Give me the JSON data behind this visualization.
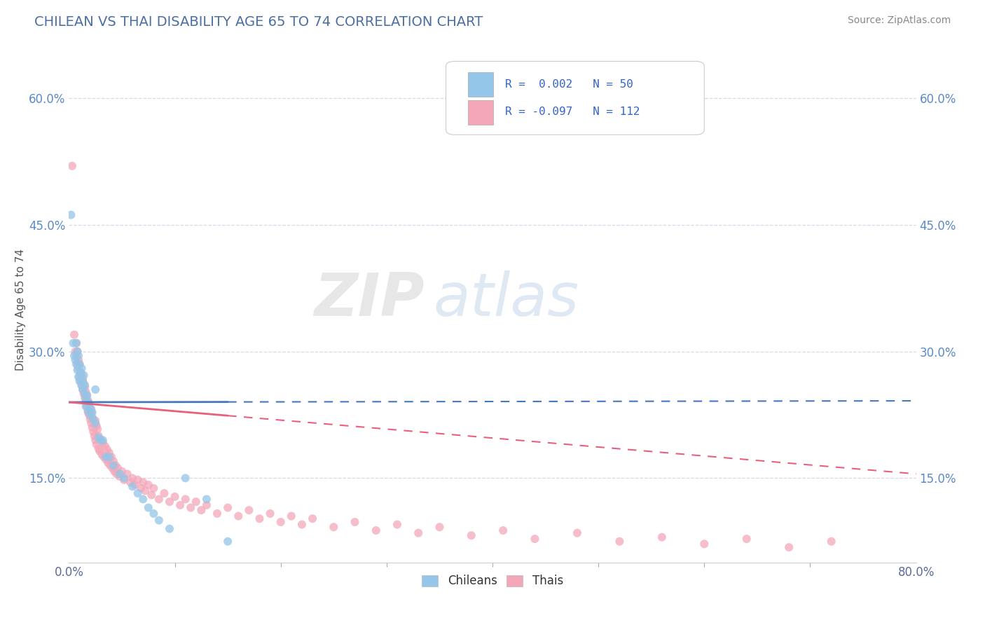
{
  "title": "CHILEAN VS THAI DISABILITY AGE 65 TO 74 CORRELATION CHART",
  "source_text": "Source: ZipAtlas.com",
  "ylabel": "Disability Age 65 to 74",
  "xlim": [
    0.0,
    0.8
  ],
  "ylim": [
    0.05,
    0.65
  ],
  "ytick_labels": [
    "15.0%",
    "30.0%",
    "45.0%",
    "60.0%"
  ],
  "ytick_vals": [
    0.15,
    0.3,
    0.45,
    0.6
  ],
  "color_chilean": "#93C6E8",
  "color_thai": "#F4A7B9",
  "line_color_chilean": "#4477BB",
  "line_color_thai": "#E8607A",
  "watermark_zip": "ZIP",
  "watermark_atlas": "atlas",
  "background_color": "#ffffff",
  "grid_color": "#d8d8e8",
  "chilean_x": [
    0.002,
    0.004,
    0.005,
    0.006,
    0.007,
    0.007,
    0.008,
    0.008,
    0.009,
    0.009,
    0.01,
    0.01,
    0.011,
    0.012,
    0.012,
    0.013,
    0.013,
    0.014,
    0.015,
    0.015,
    0.016,
    0.016,
    0.017,
    0.018,
    0.018,
    0.019,
    0.02,
    0.021,
    0.022,
    0.023,
    0.025,
    0.025,
    0.028,
    0.03,
    0.032,
    0.035,
    0.038,
    0.042,
    0.048,
    0.052,
    0.06,
    0.065,
    0.07,
    0.075,
    0.08,
    0.085,
    0.095,
    0.11,
    0.13,
    0.15
  ],
  "chilean_y": [
    0.462,
    0.31,
    0.295,
    0.29,
    0.285,
    0.31,
    0.278,
    0.3,
    0.27,
    0.295,
    0.265,
    0.285,
    0.275,
    0.26,
    0.28,
    0.265,
    0.255,
    0.272,
    0.26,
    0.25,
    0.245,
    0.235,
    0.248,
    0.24,
    0.23,
    0.238,
    0.225,
    0.232,
    0.228,
    0.22,
    0.255,
    0.215,
    0.198,
    0.195,
    0.195,
    0.175,
    0.175,
    0.165,
    0.155,
    0.15,
    0.14,
    0.132,
    0.125,
    0.115,
    0.108,
    0.1,
    0.09,
    0.15,
    0.125,
    0.075
  ],
  "thai_x": [
    0.003,
    0.005,
    0.006,
    0.007,
    0.007,
    0.008,
    0.008,
    0.009,
    0.009,
    0.01,
    0.01,
    0.011,
    0.011,
    0.012,
    0.012,
    0.013,
    0.013,
    0.014,
    0.014,
    0.015,
    0.015,
    0.016,
    0.016,
    0.017,
    0.017,
    0.018,
    0.018,
    0.019,
    0.019,
    0.02,
    0.02,
    0.021,
    0.021,
    0.022,
    0.022,
    0.023,
    0.024,
    0.025,
    0.025,
    0.026,
    0.026,
    0.027,
    0.028,
    0.028,
    0.029,
    0.03,
    0.031,
    0.032,
    0.033,
    0.034,
    0.035,
    0.036,
    0.037,
    0.038,
    0.039,
    0.04,
    0.041,
    0.042,
    0.043,
    0.044,
    0.045,
    0.046,
    0.048,
    0.05,
    0.052,
    0.055,
    0.058,
    0.06,
    0.062,
    0.065,
    0.068,
    0.07,
    0.072,
    0.075,
    0.078,
    0.08,
    0.085,
    0.09,
    0.095,
    0.1,
    0.105,
    0.11,
    0.115,
    0.12,
    0.125,
    0.13,
    0.14,
    0.15,
    0.16,
    0.17,
    0.18,
    0.19,
    0.2,
    0.21,
    0.22,
    0.23,
    0.25,
    0.27,
    0.29,
    0.31,
    0.33,
    0.35,
    0.38,
    0.41,
    0.44,
    0.48,
    0.52,
    0.56,
    0.6,
    0.64,
    0.68,
    0.72
  ],
  "thai_y": [
    0.52,
    0.32,
    0.3,
    0.31,
    0.295,
    0.285,
    0.3,
    0.28,
    0.29,
    0.27,
    0.285,
    0.265,
    0.275,
    0.26,
    0.272,
    0.255,
    0.268,
    0.25,
    0.262,
    0.245,
    0.258,
    0.24,
    0.252,
    0.235,
    0.248,
    0.228,
    0.242,
    0.225,
    0.238,
    0.22,
    0.232,
    0.215,
    0.228,
    0.21,
    0.222,
    0.205,
    0.2,
    0.218,
    0.195,
    0.212,
    0.19,
    0.208,
    0.185,
    0.2,
    0.182,
    0.195,
    0.178,
    0.192,
    0.175,
    0.188,
    0.172,
    0.184,
    0.168,
    0.18,
    0.165,
    0.175,
    0.162,
    0.17,
    0.158,
    0.165,
    0.155,
    0.162,
    0.152,
    0.158,
    0.148,
    0.155,
    0.145,
    0.15,
    0.142,
    0.148,
    0.138,
    0.145,
    0.135,
    0.142,
    0.13,
    0.138,
    0.125,
    0.132,
    0.122,
    0.128,
    0.118,
    0.125,
    0.115,
    0.122,
    0.112,
    0.118,
    0.108,
    0.115,
    0.105,
    0.112,
    0.102,
    0.108,
    0.098,
    0.105,
    0.095,
    0.102,
    0.092,
    0.098,
    0.088,
    0.095,
    0.085,
    0.092,
    0.082,
    0.088,
    0.078,
    0.085,
    0.075,
    0.08,
    0.072,
    0.078,
    0.068,
    0.075
  ]
}
